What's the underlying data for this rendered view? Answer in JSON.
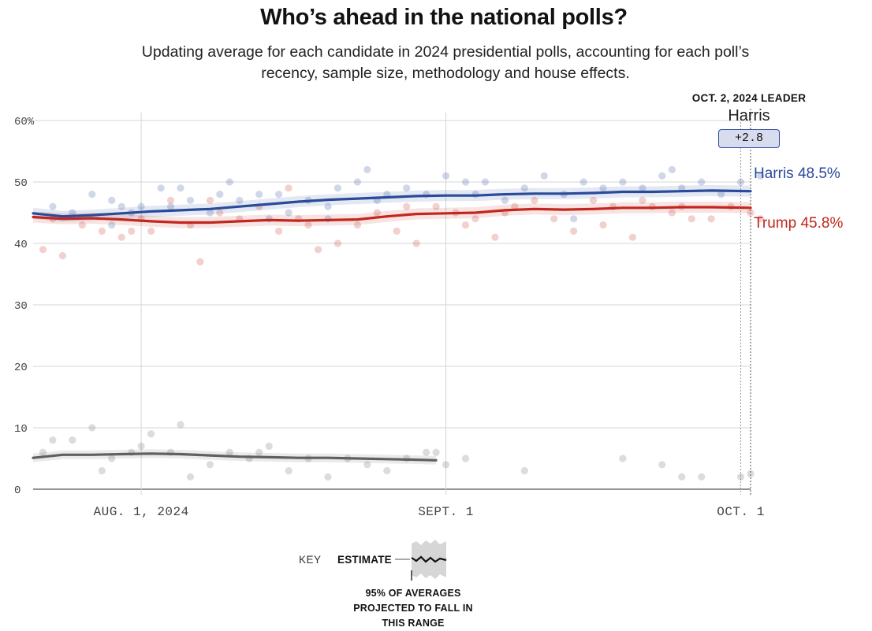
{
  "header": {
    "title": "Who’s ahead in the national polls?",
    "subtitle": "Updating average for each candidate in 2024 presidential polls, accounting for each poll’s recency, sample size, methodology and house effects."
  },
  "leader": {
    "heading": "OCT. 2, 2024 LEADER",
    "name": "Harris",
    "margin": "+2.8"
  },
  "colors": {
    "harris": "#2a4a9a",
    "trump": "#c1271e",
    "other": "#606060",
    "grid": "#cccccc"
  },
  "key": {
    "label": "KEY",
    "estimate": "ESTIMATE",
    "range_note": "95% OF AVERAGES PROJECTED TO FALL IN THIS RANGE"
  },
  "chart_data": {
    "type": "line",
    "title": "Who’s ahead in the national polls?",
    "ylabel": "",
    "xlabel": "",
    "ylim": [
      0,
      60
    ],
    "xlim": [
      "2024-07-21",
      "2024-10-02"
    ],
    "yticks": [
      "60%",
      "50",
      "40",
      "30",
      "20",
      "10",
      "0"
    ],
    "xticks": [
      "AUG. 1, 2024",
      "SEPT. 1",
      "OCT. 1"
    ],
    "end_labels": [
      "Harris 48.5%",
      "Trump 45.8%"
    ],
    "grid": true,
    "series": [
      {
        "name": "Harris",
        "color": "#2a4a9a",
        "dates": [
          "2024-07-21",
          "2024-07-24",
          "2024-07-27",
          "2024-07-30",
          "2024-08-02",
          "2024-08-05",
          "2024-08-08",
          "2024-08-11",
          "2024-08-14",
          "2024-08-17",
          "2024-08-20",
          "2024-08-23",
          "2024-08-26",
          "2024-08-29",
          "2024-09-01",
          "2024-09-04",
          "2024-09-07",
          "2024-09-10",
          "2024-09-13",
          "2024-09-16",
          "2024-09-19",
          "2024-09-22",
          "2024-09-25",
          "2024-09-28",
          "2024-10-02"
        ],
        "values": [
          44.9,
          44.4,
          44.6,
          44.9,
          45.2,
          45.4,
          45.6,
          46.0,
          46.4,
          46.8,
          47.1,
          47.3,
          47.5,
          47.7,
          47.8,
          47.8,
          48.0,
          48.1,
          48.1,
          48.2,
          48.4,
          48.4,
          48.5,
          48.6,
          48.5
        ],
        "band": 0.9,
        "polls": [
          [
            2,
            46
          ],
          [
            4,
            45
          ],
          [
            6,
            48
          ],
          [
            8,
            47
          ],
          [
            9,
            46
          ],
          [
            10,
            45
          ],
          [
            11,
            46
          ],
          [
            13,
            49
          ],
          [
            14,
            46
          ],
          [
            16,
            47
          ],
          [
            18,
            45
          ],
          [
            19,
            48
          ],
          [
            21,
            47
          ],
          [
            23,
            48
          ],
          [
            24,
            44
          ],
          [
            26,
            45
          ],
          [
            28,
            47
          ],
          [
            30,
            46
          ],
          [
            31,
            49
          ],
          [
            33,
            50
          ],
          [
            35,
            47
          ],
          [
            36,
            48
          ],
          [
            38,
            49
          ],
          [
            40,
            48
          ],
          [
            42,
            51
          ],
          [
            44,
            50
          ],
          [
            46,
            50
          ],
          [
            48,
            47
          ],
          [
            50,
            49
          ],
          [
            52,
            51
          ],
          [
            54,
            48
          ],
          [
            56,
            50
          ],
          [
            58,
            49
          ],
          [
            60,
            50
          ],
          [
            62,
            49
          ],
          [
            64,
            51
          ],
          [
            66,
            49
          ],
          [
            68,
            50
          ],
          [
            70,
            48
          ],
          [
            72,
            50
          ],
          [
            74,
            51
          ],
          [
            8,
            43
          ],
          [
            20,
            50
          ],
          [
            25,
            48
          ],
          [
            34,
            52
          ],
          [
            45,
            48
          ],
          [
            55,
            44
          ],
          [
            65,
            52
          ],
          [
            30,
            44
          ],
          [
            15,
            49
          ]
        ]
      },
      {
        "name": "Trump",
        "color": "#c1271e",
        "dates": [
          "2024-07-21",
          "2024-07-24",
          "2024-07-27",
          "2024-07-30",
          "2024-08-02",
          "2024-08-05",
          "2024-08-08",
          "2024-08-11",
          "2024-08-14",
          "2024-08-17",
          "2024-08-20",
          "2024-08-23",
          "2024-08-26",
          "2024-08-29",
          "2024-09-01",
          "2024-09-04",
          "2024-09-07",
          "2024-09-10",
          "2024-09-13",
          "2024-09-16",
          "2024-09-19",
          "2024-09-22",
          "2024-09-25",
          "2024-09-28",
          "2024-10-02"
        ],
        "values": [
          44.3,
          44.0,
          44.1,
          43.9,
          43.6,
          43.4,
          43.4,
          43.6,
          43.8,
          43.7,
          43.8,
          43.9,
          44.4,
          44.8,
          44.9,
          45.0,
          45.4,
          45.6,
          45.5,
          45.6,
          45.8,
          45.8,
          45.9,
          45.9,
          45.8
        ],
        "band": 0.9,
        "polls": [
          [
            1,
            39
          ],
          [
            2,
            44
          ],
          [
            3,
            38
          ],
          [
            5,
            43
          ],
          [
            7,
            42
          ],
          [
            9,
            41
          ],
          [
            11,
            44
          ],
          [
            12,
            42
          ],
          [
            14,
            47
          ],
          [
            16,
            43
          ],
          [
            17,
            37
          ],
          [
            19,
            45
          ],
          [
            21,
            44
          ],
          [
            23,
            46
          ],
          [
            25,
            42
          ],
          [
            27,
            44
          ],
          [
            29,
            39
          ],
          [
            31,
            40
          ],
          [
            33,
            43
          ],
          [
            35,
            45
          ],
          [
            37,
            42
          ],
          [
            39,
            40
          ],
          [
            41,
            46
          ],
          [
            43,
            45
          ],
          [
            45,
            44
          ],
          [
            47,
            41
          ],
          [
            49,
            46
          ],
          [
            51,
            47
          ],
          [
            53,
            44
          ],
          [
            55,
            42
          ],
          [
            57,
            47
          ],
          [
            59,
            46
          ],
          [
            61,
            41
          ],
          [
            63,
            46
          ],
          [
            65,
            45
          ],
          [
            67,
            44
          ],
          [
            69,
            44
          ],
          [
            71,
            46
          ],
          [
            73,
            45
          ],
          [
            74,
            44
          ],
          [
            18,
            47
          ],
          [
            26,
            49
          ],
          [
            38,
            46
          ],
          [
            48,
            45
          ],
          [
            58,
            43
          ],
          [
            62,
            47
          ],
          [
            66,
            46
          ],
          [
            44,
            43
          ],
          [
            28,
            43
          ],
          [
            10,
            42
          ]
        ]
      },
      {
        "name": "",
        "color": "#606060",
        "dates": [
          "2024-07-21",
          "2024-07-24",
          "2024-07-27",
          "2024-07-30",
          "2024-08-02",
          "2024-08-05",
          "2024-08-08",
          "2024-08-11",
          "2024-08-14",
          "2024-08-17",
          "2024-08-20",
          "2024-08-23",
          "2024-08-26",
          "2024-08-29",
          "2024-08-31"
        ],
        "values": [
          5.1,
          5.6,
          5.6,
          5.7,
          5.8,
          5.7,
          5.5,
          5.3,
          5.2,
          5.1,
          5.1,
          5.0,
          4.9,
          4.8,
          4.7
        ],
        "band": 0.7,
        "polls": [
          [
            1,
            6
          ],
          [
            2,
            8
          ],
          [
            4,
            8
          ],
          [
            6,
            10
          ],
          [
            8,
            5
          ],
          [
            10,
            6
          ],
          [
            12,
            9
          ],
          [
            14,
            6
          ],
          [
            16,
            2
          ],
          [
            18,
            4
          ],
          [
            20,
            6
          ],
          [
            22,
            5
          ],
          [
            24,
            7
          ],
          [
            26,
            3
          ],
          [
            28,
            5
          ],
          [
            30,
            2
          ],
          [
            32,
            5
          ],
          [
            34,
            4
          ],
          [
            36,
            3
          ],
          [
            38,
            5
          ],
          [
            40,
            6
          ],
          [
            42,
            4
          ],
          [
            44,
            5
          ],
          [
            50,
            3
          ],
          [
            60,
            5
          ],
          [
            64,
            4
          ],
          [
            66,
            2
          ],
          [
            68,
            2
          ],
          [
            72,
            2
          ],
          [
            73,
            2.5
          ],
          [
            15,
            10.5
          ],
          [
            7,
            3
          ],
          [
            11,
            7
          ],
          [
            23,
            6
          ],
          [
            41,
            6
          ]
        ]
      }
    ]
  }
}
